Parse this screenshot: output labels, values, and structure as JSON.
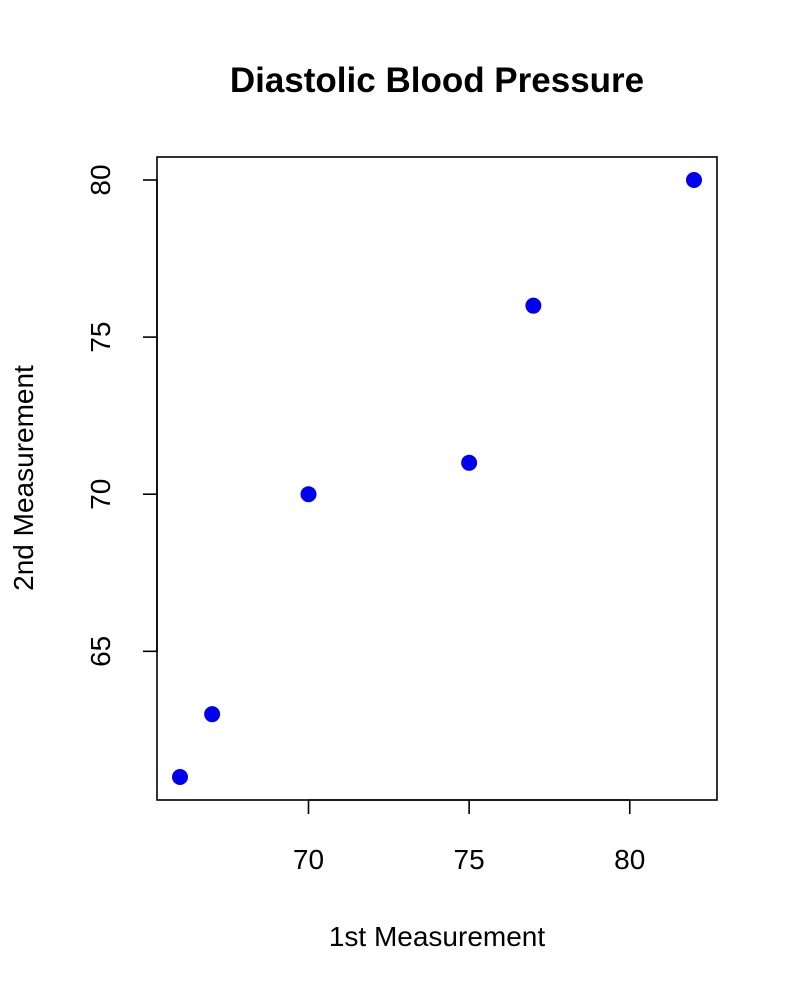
{
  "chart_data": {
    "type": "scatter",
    "title": "Diastolic Blood Pressure",
    "xlabel": "1st Measurement",
    "ylabel": "2nd Measurement",
    "xlim": [
      66,
      82
    ],
    "ylim": [
      61,
      80
    ],
    "x_ticks": [
      70,
      75,
      80
    ],
    "y_ticks": [
      65,
      70,
      75,
      80
    ],
    "grid": false,
    "legend": false,
    "marker_color": "#0000ee",
    "series": [
      {
        "points": [
          {
            "x": 66,
            "y": 61
          },
          {
            "x": 67,
            "y": 63
          },
          {
            "x": 70,
            "y": 70
          },
          {
            "x": 75,
            "y": 71
          },
          {
            "x": 77,
            "y": 76
          },
          {
            "x": 82,
            "y": 80
          }
        ]
      }
    ]
  }
}
